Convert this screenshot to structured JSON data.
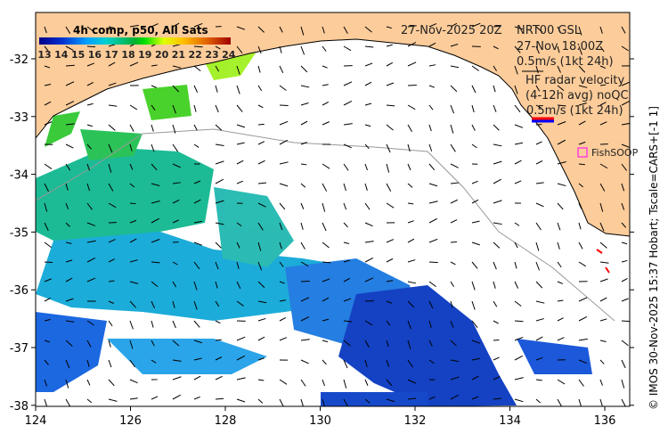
{
  "colorbar": {
    "title": "4h comp, p50, All Sats",
    "ticks": [
      "13",
      "14",
      "15",
      "16",
      "17",
      "18",
      "19",
      "20",
      "21",
      "22",
      "23",
      "24"
    ],
    "min": 13,
    "max": 24
  },
  "header": {
    "datetime": "27-Nov-2025 20Z"
  },
  "model_legend": {
    "line1": "NRT00 GSL",
    "line2": "27-Nov 18:00Z",
    "line3": "0.5m/s (1kt 24h)"
  },
  "radar_legend": {
    "line1": "HF radar velocity",
    "line2": "(4-12h avg) noQC",
    "line3": "0.5m/s (1kt 24h)"
  },
  "marker_legend": {
    "label": "FishSOOP",
    "color": "#ff00ff"
  },
  "x_ticks": [
    "124",
    "126",
    "128",
    "130",
    "132",
    "134",
    "136"
  ],
  "y_ticks": [
    "-32",
    "-33",
    "-34",
    "-35",
    "-36",
    "-37",
    "-38"
  ],
  "credit": "© IMOS 30-Nov-2025 15:37 Hobart; Tscale=CARS+[-1 1]",
  "colors": {
    "land": "#fccc9a",
    "ocean": "#ffffff"
  }
}
